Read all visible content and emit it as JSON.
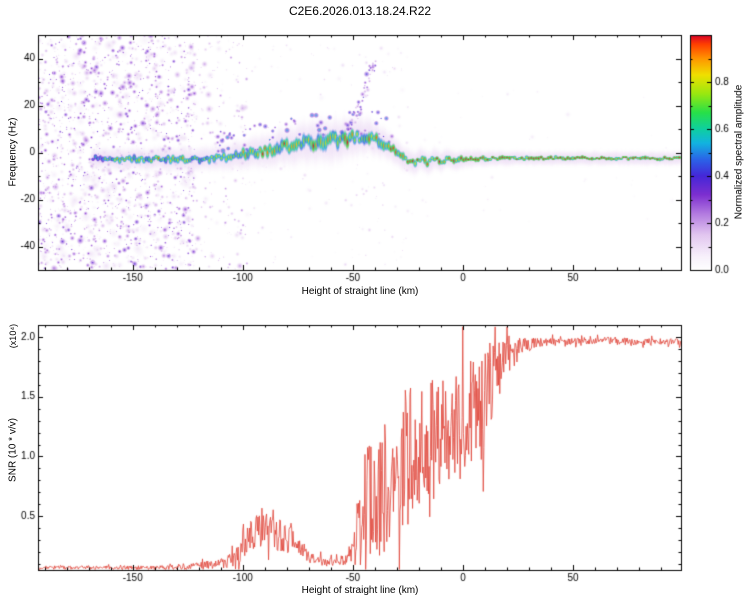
{
  "title": "C2E6.2026.013.18.24.R22",
  "colormap": [
    [
      0,
      "#ffffff"
    ],
    [
      0.06,
      "#f7f0fb"
    ],
    [
      0.15,
      "#e2c6f0"
    ],
    [
      0.24,
      "#b27ae0"
    ],
    [
      0.32,
      "#7d2fd0"
    ],
    [
      0.4,
      "#4527d8"
    ],
    [
      0.47,
      "#2b63e8"
    ],
    [
      0.54,
      "#12b4e0"
    ],
    [
      0.6,
      "#0fd0a0"
    ],
    [
      0.67,
      "#27e048"
    ],
    [
      0.75,
      "#9ae810"
    ],
    [
      0.83,
      "#f0e000"
    ],
    [
      0.9,
      "#ff9500"
    ],
    [
      0.96,
      "#ff4000"
    ],
    [
      1,
      "#d8002a"
    ]
  ],
  "chart_data": [
    {
      "type": "heatmap",
      "xlabel": "Height of straight line (km)",
      "ylabel": "Frequency (Hz)",
      "xlim": [
        -193,
        99
      ],
      "ylim": [
        -50,
        50
      ],
      "xticks": [
        [
          -150,
          "-150"
        ],
        [
          -100,
          "-100"
        ],
        [
          -50,
          "-50"
        ],
        [
          0,
          "0"
        ],
        [
          50,
          "50"
        ]
      ],
      "yticks": [
        [
          40,
          "40"
        ],
        [
          20,
          "20"
        ],
        [
          0,
          "0"
        ],
        [
          -20,
          "-20"
        ],
        [
          -40,
          "-40"
        ]
      ],
      "colorbar": {
        "label": "Normalized spectral amplitude",
        "range": [
          0,
          1
        ],
        "ticks": [
          [
            0,
            "0.0"
          ],
          [
            0.2,
            "0.2"
          ],
          [
            0.4,
            "0.4"
          ],
          [
            0.6,
            "0.6"
          ],
          [
            0.8,
            "0.8"
          ]
        ]
      },
      "seed": 1337,
      "noise": [
        {
          "x": [
            -193,
            -122
          ],
          "f": [
            -50,
            50
          ],
          "count": 500,
          "amp": [
            0.04,
            0.12
          ],
          "rmax": 7
        },
        {
          "x": [
            -193,
            -122
          ],
          "f": [
            -50,
            50
          ],
          "count": 1300,
          "amp": [
            0.08,
            0.38
          ],
          "rmax": 4
        },
        {
          "x": [
            -126,
            -98
          ],
          "f": [
            -50,
            50
          ],
          "count": 230,
          "amp": [
            0.04,
            0.26
          ],
          "rmax": 4
        },
        {
          "x": [
            -98,
            -25
          ],
          "f": [
            -48,
            48
          ],
          "count": 160,
          "amp": [
            0.03,
            0.15
          ],
          "rmax": 3
        },
        {
          "x": [
            -25,
            99
          ],
          "f": [
            -30,
            30
          ],
          "count": 50,
          "amp": [
            0.02,
            0.08
          ],
          "rmax": 3
        }
      ],
      "band_scatter": {
        "x": [
          -112,
          -30
        ],
        "df": [
          1,
          12
        ],
        "count": 70,
        "amp": [
          0.25,
          0.55
        ]
      },
      "streak": {
        "from": [
          -53,
          5
        ],
        "to": [
          -40,
          38
        ],
        "count": 50,
        "amp": [
          0.15,
          0.45
        ]
      },
      "signal_track": [
        [
          -168,
          -2.5,
          0.5,
          3
        ],
        [
          -162,
          -2.5,
          0.65,
          3
        ],
        [
          -156,
          -3,
          0.7,
          3.2
        ],
        [
          -150,
          -2.5,
          0.72,
          3.2
        ],
        [
          -144,
          -3,
          0.7,
          3.4
        ],
        [
          -138,
          -2.5,
          0.74,
          3.4
        ],
        [
          -132,
          -3,
          0.72,
          3.5
        ],
        [
          -126,
          -2.8,
          0.74,
          3.5
        ],
        [
          -120,
          -3,
          0.72,
          3.6
        ],
        [
          -114,
          -2.6,
          0.75,
          3.8
        ],
        [
          -108,
          -2,
          0.76,
          4.2
        ],
        [
          -102,
          -1.2,
          0.78,
          4.6
        ],
        [
          -96,
          -0.2,
          0.8,
          5
        ],
        [
          -90,
          0.8,
          0.8,
          5.5
        ],
        [
          -84,
          2,
          0.82,
          6
        ],
        [
          -78,
          3,
          0.8,
          6.5
        ],
        [
          -72,
          4,
          0.82,
          7
        ],
        [
          -66,
          4.6,
          0.8,
          7.5
        ],
        [
          -60,
          5.2,
          0.82,
          7.5
        ],
        [
          -54,
          5.8,
          0.8,
          7
        ],
        [
          -48,
          6.5,
          0.78,
          6.5
        ],
        [
          -44,
          7,
          0.76,
          6
        ],
        [
          -40,
          6,
          0.78,
          5.5
        ],
        [
          -36,
          4,
          0.8,
          5
        ],
        [
          -32,
          1.5,
          0.84,
          4.5
        ],
        [
          -28,
          -1.5,
          0.88,
          4
        ],
        [
          -25,
          -3.5,
          0.9,
          3.8
        ],
        [
          -22,
          -4.5,
          0.88,
          3.8
        ],
        [
          -19,
          -3,
          0.9,
          3.6
        ],
        [
          -16,
          -4.5,
          0.88,
          3.6
        ],
        [
          -13,
          -2.5,
          0.9,
          3.4
        ],
        [
          -10,
          -4,
          0.9,
          3.2
        ],
        [
          -7,
          -2.5,
          0.92,
          3
        ],
        [
          -4,
          -3.5,
          0.92,
          3
        ],
        [
          0,
          -2.8,
          0.93,
          2.8
        ],
        [
          6,
          -2.6,
          0.94,
          2.5
        ],
        [
          15,
          -2.5,
          0.95,
          2.2
        ],
        [
          30,
          -2.5,
          0.95,
          2
        ],
        [
          50,
          -2.4,
          0.95,
          2
        ],
        [
          75,
          -2.5,
          0.95,
          2
        ],
        [
          99,
          -2.5,
          0.95,
          2
        ]
      ]
    },
    {
      "type": "line",
      "xlabel": "Height of straight line (km)",
      "ylabel": "SNR (10 * v/v)",
      "ylabel_exp": "(x10⁴)",
      "xlim": [
        -193,
        99
      ],
      "ylim": [
        0.05,
        2.1
      ],
      "xticks": [
        [
          -150,
          "-150"
        ],
        [
          -100,
          "-100"
        ],
        [
          -50,
          "-50"
        ],
        [
          0,
          "0"
        ],
        [
          50,
          "50"
        ]
      ],
      "yticks": [
        [
          0.5,
          "0.5"
        ],
        [
          1,
          "1.0"
        ],
        [
          1.5,
          "1.5"
        ],
        [
          2,
          "2.0"
        ]
      ],
      "seed": 99,
      "series": [
        {
          "name": "SNR",
          "color": "#e0453a",
          "envelope": [
            [
              -193,
              0.07,
              0.015
            ],
            [
              -160,
              0.07,
              0.015
            ],
            [
              -135,
              0.07,
              0.02
            ],
            [
              -125,
              0.08,
              0.03
            ],
            [
              -118,
              0.09,
              0.03
            ],
            [
              -112,
              0.1,
              0.04
            ],
            [
              -106,
              0.13,
              0.06
            ],
            [
              -101,
              0.2,
              0.1
            ],
            [
              -97,
              0.3,
              0.14
            ],
            [
              -93,
              0.4,
              0.16
            ],
            [
              -89,
              0.42,
              0.16
            ],
            [
              -86,
              0.38,
              0.18
            ],
            [
              -83,
              0.35,
              0.14
            ],
            [
              -80,
              0.3,
              0.12
            ],
            [
              -77,
              0.33,
              0.15
            ],
            [
              -74,
              0.25,
              0.1
            ],
            [
              -70,
              0.18,
              0.07
            ],
            [
              -66,
              0.14,
              0.05
            ],
            [
              -62,
              0.12,
              0.04
            ],
            [
              -58,
              0.11,
              0.04
            ],
            [
              -54,
              0.13,
              0.05
            ],
            [
              -51,
              0.18,
              0.09
            ],
            [
              -48,
              0.35,
              0.3
            ],
            [
              -45,
              0.55,
              0.45
            ],
            [
              -42,
              0.6,
              0.55
            ],
            [
              -39,
              0.55,
              0.45
            ],
            [
              -36,
              0.75,
              0.55
            ],
            [
              -33,
              0.65,
              0.5
            ],
            [
              -30,
              0.85,
              0.6
            ],
            [
              -27,
              1,
              0.65
            ],
            [
              -24,
              1.05,
              0.6
            ],
            [
              -21,
              1.15,
              0.6
            ],
            [
              -18,
              1,
              0.55
            ],
            [
              -15,
              1.1,
              0.55
            ],
            [
              -12,
              1.15,
              0.5
            ],
            [
              -9,
              1.05,
              0.5
            ],
            [
              -6,
              1.25,
              0.5
            ],
            [
              -3,
              1.3,
              0.45
            ],
            [
              0,
              1.25,
              0.5
            ],
            [
              3,
              1.35,
              0.45
            ],
            [
              6,
              1.45,
              0.4
            ],
            [
              9,
              1.4,
              0.45
            ],
            [
              12,
              1.6,
              0.4
            ],
            [
              15,
              1.7,
              0.3
            ],
            [
              18,
              1.78,
              0.22
            ],
            [
              21,
              1.85,
              0.15
            ],
            [
              25,
              1.9,
              0.1
            ],
            [
              30,
              1.94,
              0.06
            ],
            [
              35,
              1.96,
              0.04
            ],
            [
              45,
              1.96,
              0.03
            ],
            [
              60,
              1.97,
              0.03
            ],
            [
              80,
              1.96,
              0.03
            ],
            [
              99,
              1.95,
              0.04
            ]
          ]
        }
      ]
    }
  ]
}
